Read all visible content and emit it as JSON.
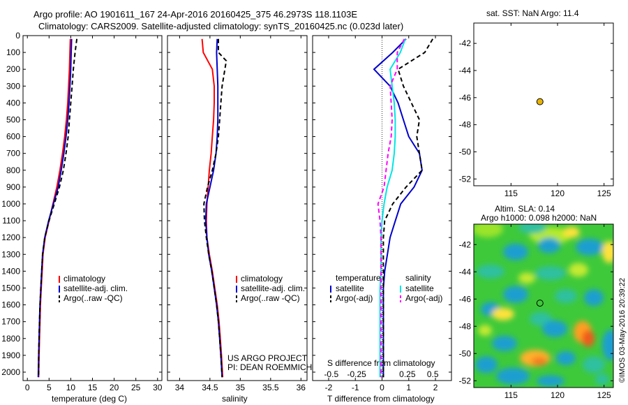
{
  "header": {
    "title_line1": "Argo profile: AO 1901611_167 24-Apr-2016 20160425_375 46.2973S 118.1103E",
    "title_line2": "Climatology: CARS2009. Satellite-adjusted climatology: synTS_20160425.nc (0.023d later)"
  },
  "colors": {
    "climatology": "#ff0000",
    "satellite": "#0000cc",
    "argo": "#000000",
    "satellite_salinity": "#00e5e5",
    "argo_salinity": "#ff00ff",
    "marker": "#e8b400"
  },
  "chart_data": [
    {
      "type": "line",
      "panel": "temperature",
      "xlabel": "temperature (deg C)",
      "xlim": [
        -1,
        31
      ],
      "xticks": [
        0,
        5,
        10,
        15,
        20,
        25,
        30
      ],
      "ylim": [
        0,
        2050
      ],
      "yticks": [
        0,
        100,
        200,
        300,
        400,
        500,
        600,
        700,
        800,
        900,
        1000,
        1100,
        1200,
        1300,
        1400,
        1500,
        1600,
        1700,
        1800,
        1900,
        2000
      ],
      "legend": [
        "climatology",
        "satellite-adj. clim.",
        "Argo(..raw -QC)"
      ],
      "series": [
        {
          "name": "climatology",
          "style": "solid",
          "color": "#ff0000",
          "x": [
            9.9,
            9.8,
            9.7,
            9.5,
            9.3,
            9.0,
            8.6,
            8.1,
            7.5,
            6.8,
            5.9,
            5.0,
            4.1,
            3.6,
            3.4,
            3.2,
            3.0,
            2.9,
            2.8,
            2.7,
            2.6
          ],
          "y": [
            20,
            100,
            200,
            300,
            400,
            500,
            600,
            700,
            800,
            900,
            1000,
            1100,
            1200,
            1300,
            1400,
            1500,
            1600,
            1700,
            1800,
            1900,
            2030
          ]
        },
        {
          "name": "satellite-adj. clim.",
          "style": "solid",
          "color": "#0000cc",
          "x": [
            10.2,
            10.1,
            10.0,
            9.8,
            9.6,
            9.3,
            8.9,
            8.4,
            7.8,
            7.1,
            6.0,
            4.9,
            4.0,
            3.5,
            3.3,
            3.1,
            2.9,
            2.8,
            2.7,
            2.6,
            2.5
          ],
          "y": [
            20,
            100,
            200,
            300,
            400,
            500,
            600,
            700,
            800,
            900,
            1000,
            1100,
            1200,
            1300,
            1400,
            1500,
            1600,
            1700,
            1800,
            1900,
            2030
          ]
        },
        {
          "name": "Argo(..raw -QC)",
          "style": "dashed",
          "color": "#000000",
          "x": [
            11.4,
            11.0,
            10.6,
            10.3,
            10.0,
            9.7,
            9.4,
            8.9,
            8.3,
            7.4,
            6.2,
            5.0,
            4.0,
            3.5,
            3.3,
            3.1,
            2.9,
            2.8,
            2.7,
            2.6,
            2.6
          ],
          "y": [
            20,
            100,
            200,
            300,
            400,
            500,
            600,
            700,
            800,
            900,
            1000,
            1100,
            1200,
            1300,
            1400,
            1500,
            1600,
            1700,
            1800,
            1900,
            2030
          ]
        }
      ]
    },
    {
      "type": "line",
      "panel": "salinity",
      "xlabel": "salinity",
      "xlim": [
        33.8,
        36.1
      ],
      "xticks": [
        34,
        34.5,
        35,
        35.5,
        36
      ],
      "xtick_labels": [
        "34",
        "34.5",
        "35",
        "35.5",
        "36"
      ],
      "ylim": [
        0,
        2050
      ],
      "legend": [
        "climatology",
        "satellite-adj. clim.",
        "Argo(..raw -QC)"
      ],
      "annotation": [
        "US ARGO PROJECT",
        "PI: DEAN ROEMMICH"
      ],
      "series": [
        {
          "name": "climatology",
          "style": "solid",
          "color": "#ff0000",
          "x": [
            34.37,
            34.39,
            34.54,
            34.57,
            34.57,
            34.56,
            34.54,
            34.52,
            34.49,
            34.47,
            34.45,
            34.44,
            34.45,
            34.49,
            34.54,
            34.58,
            34.62,
            34.65,
            34.67,
            34.69,
            34.71
          ],
          "y": [
            20,
            100,
            200,
            300,
            400,
            500,
            600,
            700,
            800,
            900,
            1000,
            1100,
            1200,
            1300,
            1400,
            1500,
            1600,
            1700,
            1800,
            1900,
            2030
          ]
        },
        {
          "name": "satellite-adj. clim.",
          "style": "solid",
          "color": "#0000cc",
          "x": [
            34.62,
            34.61,
            34.62,
            34.63,
            34.63,
            34.63,
            34.62,
            34.6,
            34.56,
            34.5,
            34.44,
            34.43,
            34.45,
            34.48,
            34.53,
            34.57,
            34.61,
            34.64,
            34.66,
            34.68,
            34.7
          ],
          "y": [
            20,
            100,
            200,
            300,
            400,
            500,
            600,
            700,
            800,
            900,
            1000,
            1100,
            1200,
            1300,
            1400,
            1500,
            1600,
            1700,
            1800,
            1900,
            2030
          ]
        },
        {
          "name": "Argo(..raw -QC)",
          "style": "dashed",
          "color": "#000000",
          "x": [
            34.64,
            34.64,
            34.77,
            34.7,
            34.68,
            34.66,
            34.64,
            34.6,
            34.54,
            34.46,
            34.4,
            34.41,
            34.44,
            34.48,
            34.53,
            34.57,
            34.61,
            34.64,
            34.66,
            34.68,
            34.7
          ],
          "y": [
            20,
            100,
            150,
            300,
            400,
            500,
            600,
            700,
            800,
            900,
            1000,
            1100,
            1200,
            1300,
            1400,
            1500,
            1600,
            1700,
            1800,
            1900,
            2030
          ]
        }
      ]
    },
    {
      "type": "line",
      "panel": "difference",
      "xlabel": "T difference from climatology",
      "x2label": "S difference from climatology",
      "xlim": [
        -2.6,
        2.6
      ],
      "xticks": [
        -2,
        -1,
        0,
        1,
        2
      ],
      "xtick_labels": [
        "-2",
        "-1",
        "0",
        "1",
        "2"
      ],
      "sticks": [
        -0.5,
        -0.25,
        0,
        0.25,
        0.5
      ],
      "stick_labels": [
        "-0.5",
        "-0.25",
        "0",
        "0.25",
        "0.5"
      ],
      "ylim": [
        0,
        2050
      ],
      "legend": {
        "temperature": [
          "satellite",
          "Argo(-adj)"
        ],
        "salinity": [
          "satellite",
          "Argo(-adj)"
        ],
        "temperature_heading": "temperature",
        "salinity_heading": "salinity"
      },
      "series": [
        {
          "name": "satellite",
          "group": "temperature",
          "style": "solid",
          "color": "#0000cc",
          "x": [
            0.9,
            0.4,
            -0.3,
            0.3,
            0.6,
            0.8,
            1.0,
            1.4,
            1.5,
            1.2,
            0.7,
            0.5,
            0.3,
            0.2,
            0.1,
            0.05,
            0.05,
            0.05,
            0.05,
            0.05,
            0.05
          ],
          "y": [
            20,
            100,
            200,
            300,
            400,
            500,
            600,
            700,
            800,
            900,
            1000,
            1100,
            1200,
            1300,
            1400,
            1500,
            1600,
            1700,
            1800,
            1900,
            2030
          ]
        },
        {
          "name": "Argo(-adj)",
          "group": "temperature",
          "style": "dashed",
          "color": "#000000",
          "x": [
            1.9,
            1.6,
            0.6,
            0.8,
            1.1,
            1.4,
            1.3,
            1.4,
            1.5,
            0.9,
            0.4,
            0.1,
            0.05,
            0.05,
            0.05,
            0.05,
            0.05,
            0.05,
            0.05,
            0.05,
            0.05
          ],
          "y": [
            20,
            100,
            200,
            300,
            400,
            500,
            600,
            700,
            800,
            900,
            1000,
            1100,
            1200,
            1300,
            1400,
            1500,
            1600,
            1700,
            1800,
            1900,
            2030
          ]
        },
        {
          "name": "satellite",
          "group": "salinity",
          "style": "solid",
          "color": "#00e5e5",
          "x": [
            0.23,
            0.18,
            0.08,
            0.1,
            0.12,
            0.13,
            0.13,
            0.12,
            0.1,
            0.05,
            0.02,
            0.0,
            -0.01,
            -0.01,
            -0.01,
            -0.02,
            -0.02,
            -0.02,
            -0.02,
            -0.02,
            -0.02
          ],
          "y": [
            20,
            100,
            200,
            300,
            400,
            500,
            600,
            700,
            800,
            900,
            1000,
            1100,
            1200,
            1300,
            1400,
            1500,
            1600,
            1700,
            1800,
            1900,
            2030
          ]
        },
        {
          "name": "Argo(-adj)",
          "group": "salinity",
          "style": "dashed",
          "color": "#ff00ff",
          "x": [
            0.22,
            0.15,
            0.15,
            0.08,
            0.09,
            0.1,
            0.09,
            0.06,
            0.04,
            0.02,
            -0.04,
            -0.02,
            -0.01,
            -0.01,
            -0.01,
            -0.01,
            -0.01,
            -0.01,
            -0.01,
            -0.01,
            -0.01
          ],
          "y": [
            20,
            100,
            200,
            300,
            400,
            500,
            600,
            700,
            800,
            900,
            1000,
            1100,
            1200,
            1300,
            1400,
            1500,
            1600,
            1700,
            1800,
            1900,
            2030
          ]
        }
      ]
    },
    {
      "type": "scatter",
      "panel": "sst_map",
      "title": "sat. SST: NaN Argo: 11.4",
      "xlim": [
        111,
        126
      ],
      "xticks": [
        115,
        120,
        125
      ],
      "ylim": [
        -52.5,
        -40.5
      ],
      "yticks": [
        -42,
        -44,
        -46,
        -48,
        -50,
        -52
      ],
      "points": [
        {
          "x": 118.11,
          "y": -46.3
        }
      ]
    },
    {
      "type": "heatmap",
      "panel": "sla_map",
      "title_line1": "Altim. SLA: 0.14",
      "title_line2": "Argo h1000: 0.098 h2000: NaN",
      "xlim": [
        111,
        126
      ],
      "xticks": [
        115,
        120,
        125
      ],
      "ylim": [
        -52.5,
        -40.5
      ],
      "yticks": [
        -42,
        -44,
        -46,
        -48,
        -50,
        -52
      ],
      "points": [
        {
          "x": 118.11,
          "y": -46.3
        }
      ]
    }
  ],
  "footer": {
    "credit": "©IMOS 03-May-2016 20:39:22"
  }
}
